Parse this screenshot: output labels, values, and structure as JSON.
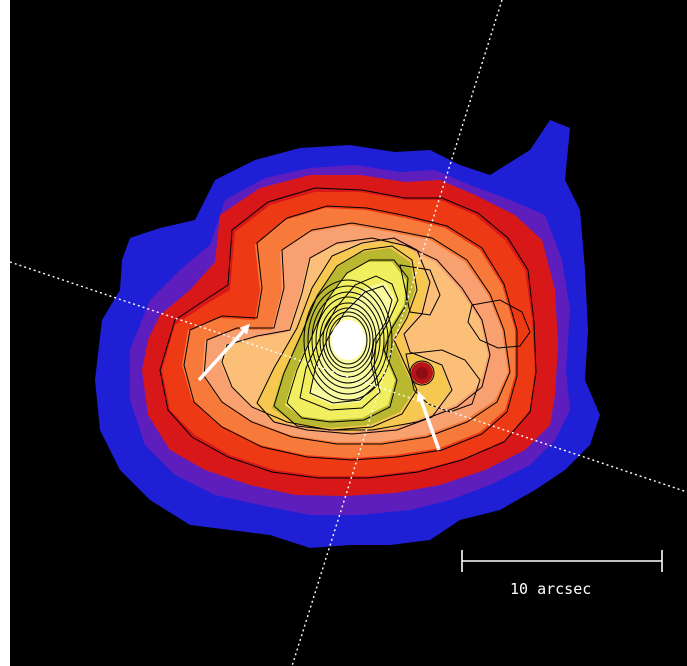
{
  "image": {
    "scale_bar_label": "10 arcsec"
  },
  "colors": {
    "background": "#000000",
    "outer_halo": "#1f1fd6",
    "halo_violet": "#6a1fb8",
    "red": "#d81818",
    "red_orange": "#ee3a14",
    "orange": "#f87a3a",
    "salmon": "#f9a070",
    "light_orange": "#fbbf78",
    "yellow_orange": "#f6c850",
    "olive": "#b9b830",
    "yellow": "#f1ef60",
    "pale_yellow": "#fafaa0",
    "core": "#ffffff",
    "contour": "#000000",
    "annotation": "#ffffff"
  }
}
